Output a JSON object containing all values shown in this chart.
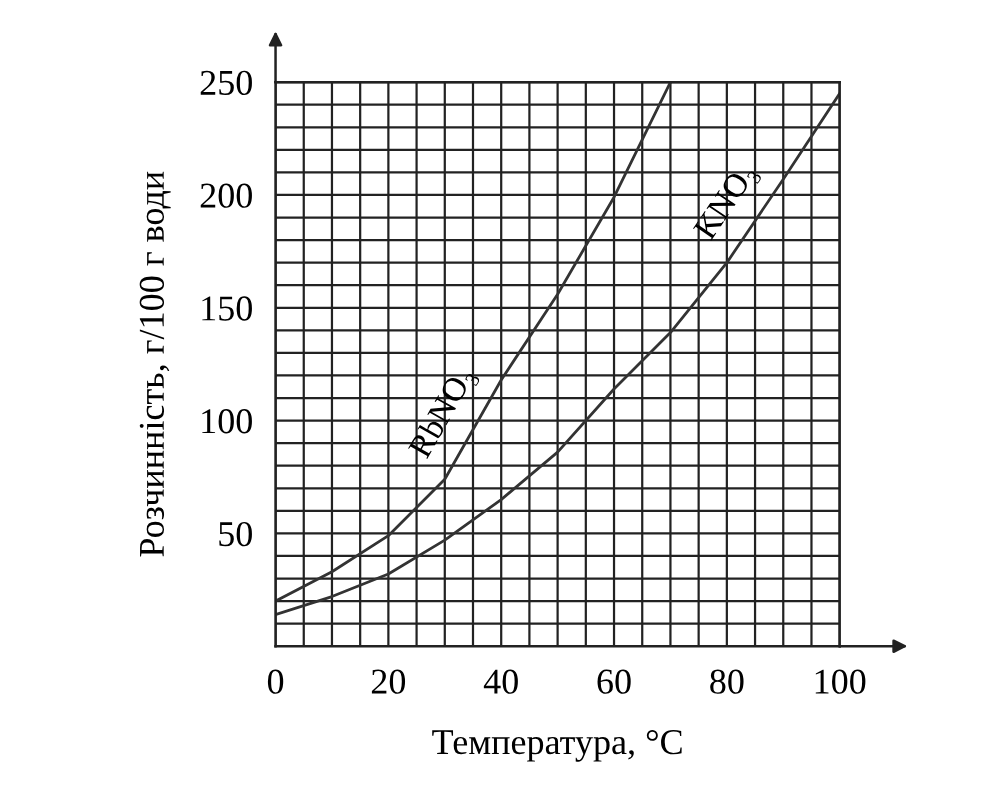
{
  "chart_data": {
    "type": "line",
    "xlabel": "Температура, °C",
    "ylabel": "Розчинність, г/100 г води",
    "x": [
      0,
      10,
      20,
      30,
      40,
      50,
      60,
      70,
      80,
      90,
      100
    ],
    "series": [
      {
        "name": "RbNO₃",
        "color": "#333333",
        "values": [
          20,
          33,
          49,
          74,
          118,
          156,
          199,
          250,
          null,
          null,
          null
        ]
      },
      {
        "name": "KNO₃",
        "color": "#333333",
        "values": [
          14,
          22,
          32,
          47,
          65,
          86,
          114,
          139,
          170,
          207,
          245
        ]
      }
    ],
    "xlim": [
      0,
      100
    ],
    "ylim": [
      0,
      250
    ],
    "xticks": [
      0,
      {
        "value": 5,
        "label": null
      },
      {
        "value": 10,
        "label": null
      },
      {
        "value": 15,
        "label": null
      },
      20,
      {
        "value": 25,
        "label": null
      },
      {
        "value": 30,
        "label": null
      },
      {
        "value": 35,
        "label": null
      },
      40,
      {
        "value": 45,
        "label": null
      },
      {
        "value": 50,
        "label": null
      },
      {
        "value": 55,
        "label": null
      },
      60,
      {
        "value": 65,
        "label": null
      },
      {
        "value": 70,
        "label": null
      },
      {
        "value": 75,
        "label": null
      },
      80,
      {
        "value": 85,
        "label": null
      },
      {
        "value": 90,
        "label": null
      },
      {
        "value": 95,
        "label": null
      },
      100
    ],
    "yticks": [
      {
        "value": 0,
        "label": null
      },
      {
        "value": 10,
        "label": null
      },
      {
        "value": 20,
        "label": null
      },
      {
        "value": 30,
        "label": null
      },
      {
        "value": 40,
        "label": null
      },
      50,
      {
        "value": 60,
        "label": null
      },
      {
        "value": 70,
        "label": null
      },
      {
        "value": 80,
        "label": null
      },
      {
        "value": 90,
        "label": null
      },
      100,
      {
        "value": 110,
        "label": null
      },
      {
        "value": 120,
        "label": null
      },
      {
        "value": 130,
        "label": null
      },
      {
        "value": 140,
        "label": null
      },
      150,
      {
        "value": 160,
        "label": null
      },
      {
        "value": 170,
        "label": null
      },
      {
        "value": 180,
        "label": null
      },
      {
        "value": 190,
        "label": null
      },
      200,
      {
        "value": 210,
        "label": null
      },
      {
        "value": 220,
        "label": null
      },
      {
        "value": 230,
        "label": null
      },
      {
        "value": 240,
        "label": null
      },
      250
    ],
    "grid": true,
    "legend": false,
    "marker": "none",
    "line_style": "solid"
  }
}
